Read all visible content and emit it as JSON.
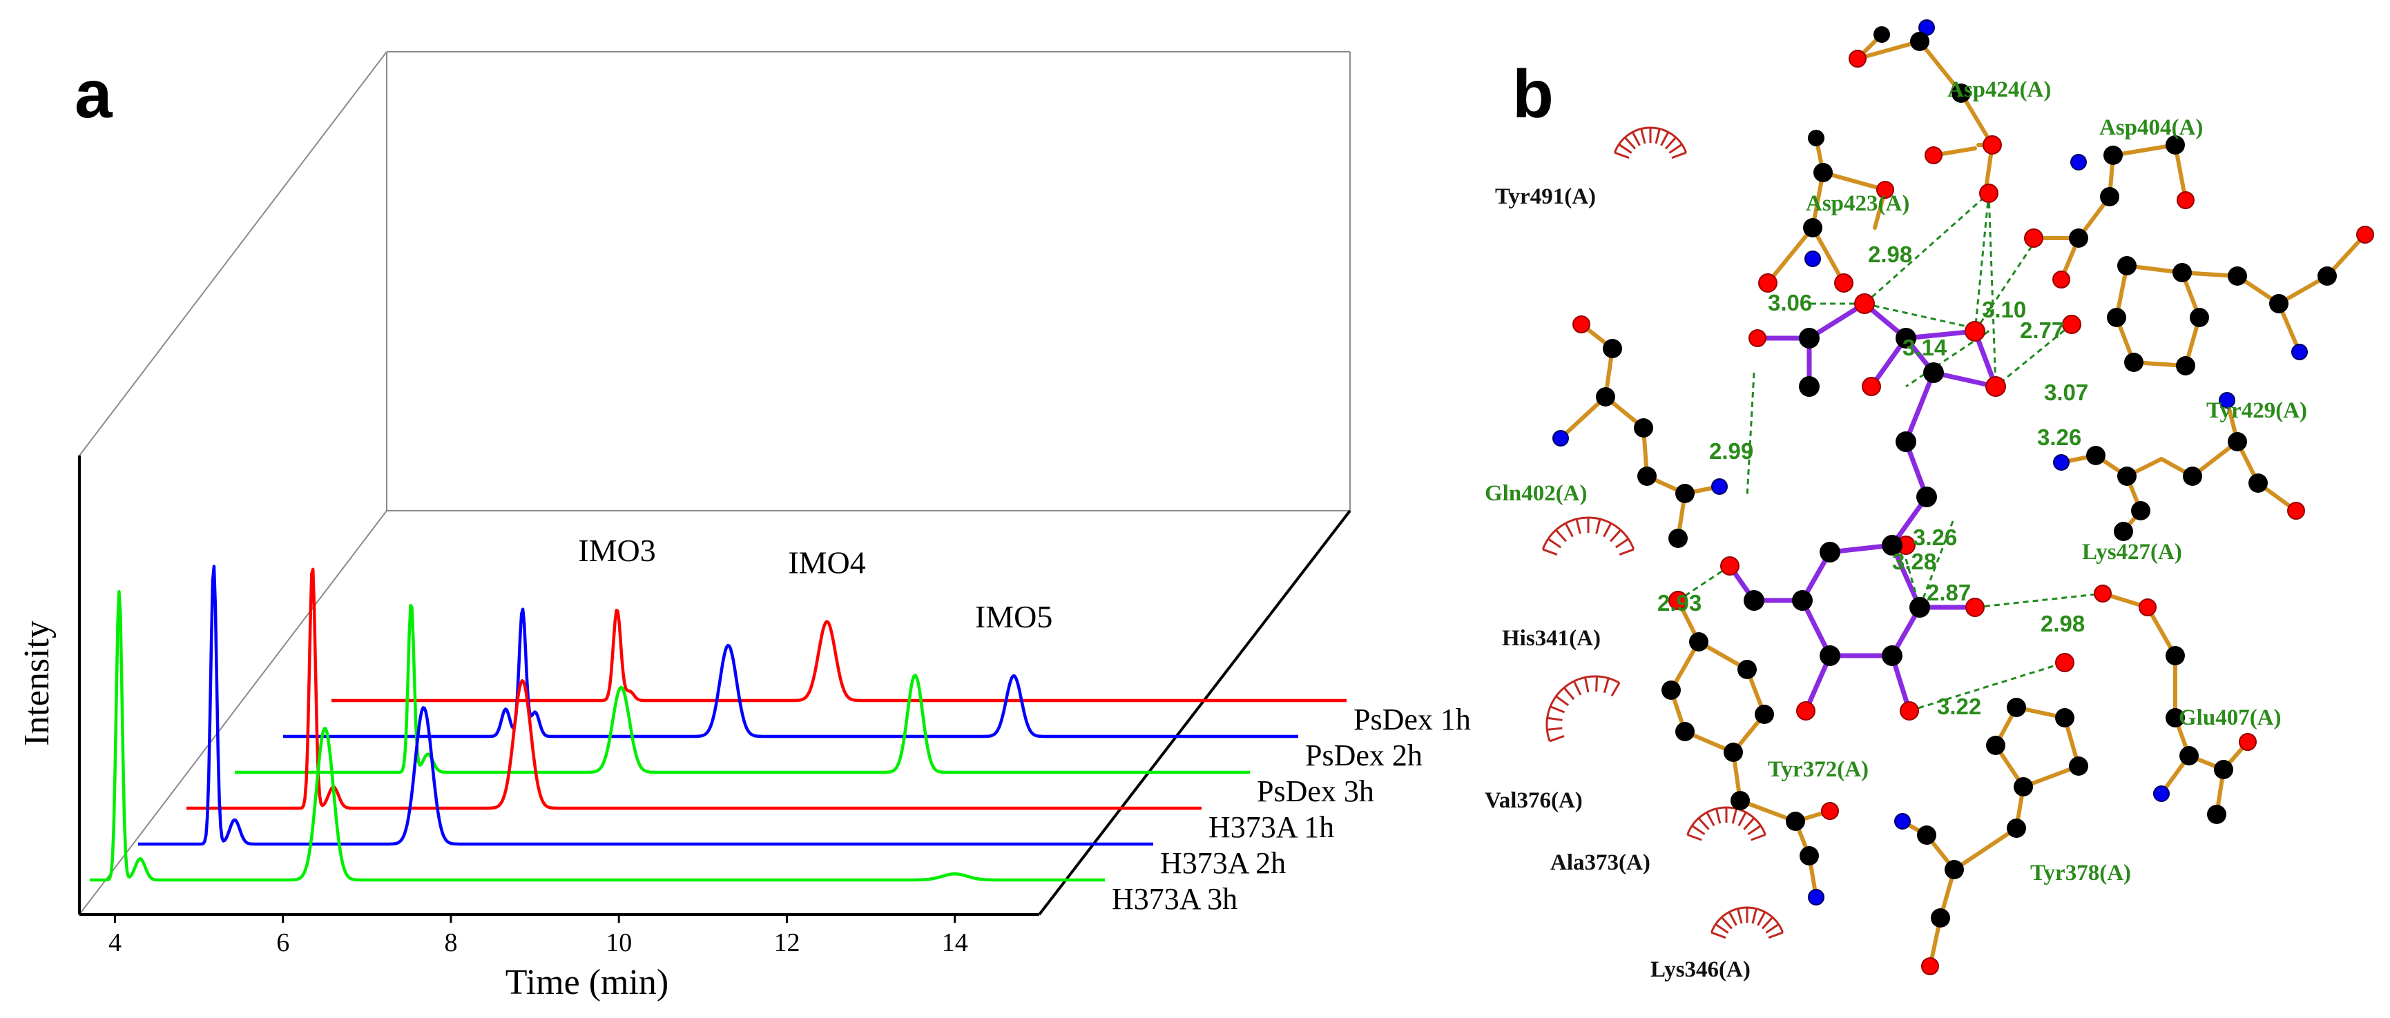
{
  "panels": {
    "a": {
      "letter": "a"
    },
    "b": {
      "letter": "b"
    }
  },
  "colors": {
    "red": "#ff0000",
    "blue": "#0000ff",
    "green": "#00ee00",
    "bond": "#d1901f",
    "ligand": "#8a2be2",
    "hbond": "#1f8a1f",
    "carbon": "#000000",
    "oxygen": "#ff0000",
    "nitrogen": "#0000ff"
  },
  "chart_data": {
    "type": "line",
    "title": "",
    "xlabel": "Time (min)",
    "ylabel": "Intensity",
    "xlim": [
      3.7,
      14.8
    ],
    "xticks": [
      4,
      6,
      8,
      10,
      12,
      14
    ],
    "layout": "3D waterfall (stacked traces, back to front)",
    "peak_annotations": [
      {
        "label": "IMO3",
        "series": "PsDex 1h",
        "x": 7.1
      },
      {
        "label": "IMO4",
        "series": "PsDex 1h",
        "x": 9.6
      },
      {
        "label": "IMO5",
        "series": "PsDex 2h",
        "x": 12.4
      }
    ],
    "series": [
      {
        "name": "PsDex 1h",
        "color": "red",
        "baseline": 0.02,
        "peaks": [
          [
            7.1,
            0.3,
            0.045
          ],
          [
            7.25,
            0.03,
            0.05
          ],
          [
            9.6,
            0.26,
            0.1
          ]
        ]
      },
      {
        "name": "PsDex 2h",
        "color": "blue",
        "baseline": 0.02,
        "peaks": [
          [
            6.35,
            0.09,
            0.05
          ],
          [
            6.55,
            0.42,
            0.04
          ],
          [
            6.7,
            0.08,
            0.05
          ],
          [
            9.0,
            0.3,
            0.1
          ],
          [
            12.4,
            0.2,
            0.09
          ]
        ]
      },
      {
        "name": "PsDex 3h",
        "color": "green",
        "baseline": 0.02,
        "peaks": [
          [
            5.8,
            0.56,
            0.035
          ],
          [
            6.0,
            0.06,
            0.06
          ],
          [
            8.3,
            0.28,
            0.1
          ],
          [
            11.8,
            0.32,
            0.09
          ]
        ]
      },
      {
        "name": "H373A 1h",
        "color": "red",
        "baseline": 0.02,
        "peaks": [
          [
            5.2,
            0.8,
            0.035
          ],
          [
            5.45,
            0.07,
            0.06
          ],
          [
            7.7,
            0.42,
            0.1
          ]
        ]
      },
      {
        "name": "H373A 2h",
        "color": "blue",
        "baseline": 0.02,
        "peaks": [
          [
            4.6,
            0.92,
            0.035
          ],
          [
            4.85,
            0.08,
            0.06
          ],
          [
            7.1,
            0.45,
            0.1
          ]
        ]
      },
      {
        "name": "H373A 3h",
        "color": "green",
        "baseline": 0.02,
        "peaks": [
          [
            4.05,
            0.95,
            0.035
          ],
          [
            4.3,
            0.07,
            0.06
          ],
          [
            6.5,
            0.5,
            0.1
          ],
          [
            14.0,
            0.02,
            0.15
          ]
        ]
      }
    ]
  },
  "interaction_map": {
    "residues": [
      {
        "label": "Asp424(A)",
        "kind": "hbond"
      },
      {
        "label": "Asp404(A)",
        "kind": "hbond"
      },
      {
        "label": "Tyr491(A)",
        "kind": "hydrophobic"
      },
      {
        "label": "Asp423(A)",
        "kind": "hbond"
      },
      {
        "label": "Tyr429(A)",
        "kind": "hbond"
      },
      {
        "label": "Gln402(A)",
        "kind": "hbond"
      },
      {
        "label": "Lys427(A)",
        "kind": "hbond"
      },
      {
        "label": "His341(A)",
        "kind": "hydrophobic"
      },
      {
        "label": "Glu407(A)",
        "kind": "hbond"
      },
      {
        "label": "Tyr372(A)",
        "kind": "hbond"
      },
      {
        "label": "Val376(A)",
        "kind": "hydrophobic"
      },
      {
        "label": "Ala373(A)",
        "kind": "hydrophobic"
      },
      {
        "label": "Tyr378(A)",
        "kind": "hbond"
      },
      {
        "label": "Lys346(A)",
        "kind": "hydrophobic"
      }
    ],
    "hbond_distances": [
      "2.98",
      "3.06",
      "3.10",
      "3.14",
      "2.77",
      "3.07",
      "3.26",
      "2.99",
      "3.26",
      "3.28",
      "2.87",
      "2.93",
      "2.98",
      "3.22"
    ]
  }
}
